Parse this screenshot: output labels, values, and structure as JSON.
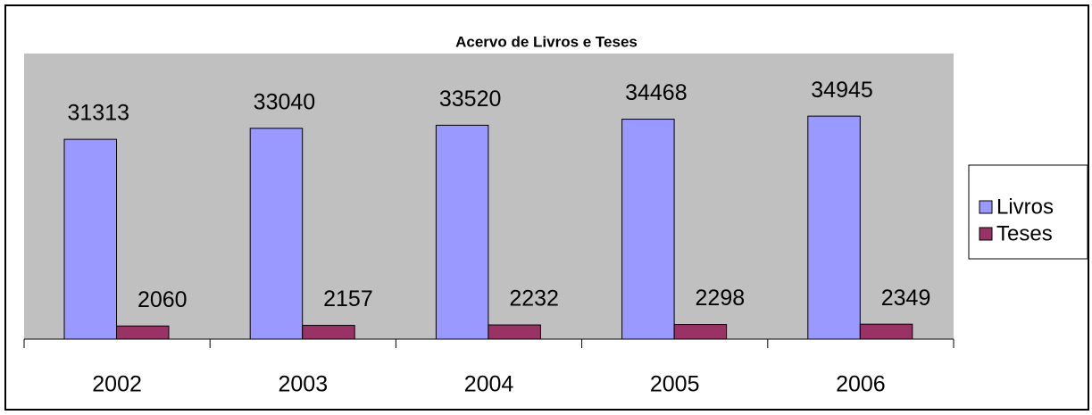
{
  "chart_data": {
    "type": "bar",
    "title": "Acervo de Livros e Teses",
    "categories": [
      "2002",
      "2003",
      "2004",
      "2005",
      "2006"
    ],
    "series": [
      {
        "name": "Livros",
        "color": "#9999ff",
        "values": [
          31313,
          33040,
          33520,
          34468,
          34945
        ]
      },
      {
        "name": "Teses",
        "color": "#993366",
        "values": [
          2060,
          2157,
          2232,
          2298,
          2349
        ]
      }
    ],
    "ylim": [
      0,
      40000
    ],
    "legend": "right"
  }
}
